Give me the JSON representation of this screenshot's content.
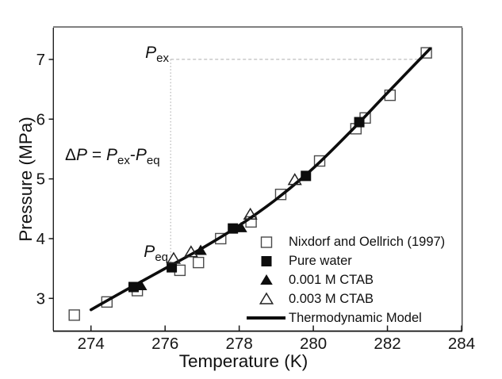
{
  "labels": {
    "x_axis_title": "Temperature (K)",
    "y_axis_title": "Pressure (MPa)",
    "p": "P",
    "sub_ex": "ex",
    "sub_eq": "eq",
    "delta": "Δ",
    "equals": " = ",
    "minus": "-"
  },
  "legend": {
    "position": "lower-right-inside",
    "items": [
      {
        "key": "nixdorf",
        "marker": "open-square",
        "label": "Nixdorf and Oellrich (1997)"
      },
      {
        "key": "pure-water",
        "marker": "filled-square",
        "label": "Pure water"
      },
      {
        "key": "ctab-001",
        "marker": "filled-triangle",
        "label": "0.001 M CTAB"
      },
      {
        "key": "ctab-003",
        "marker": "open-triangle",
        "label": "0.003 M CTAB"
      },
      {
        "key": "model",
        "marker": "line",
        "label": "Thermodynamic Model"
      }
    ]
  },
  "chart_data": {
    "type": "scatter",
    "title": "",
    "xlabel": "Temperature (K)",
    "ylabel": "Pressure (MPa)",
    "xlim": [
      273.0,
      284.0
    ],
    "ylim": [
      2.46,
      7.53
    ],
    "x_ticks": [
      274,
      276,
      278,
      280,
      282,
      284
    ],
    "y_ticks": [
      3,
      4,
      5,
      6,
      7
    ],
    "grid": false,
    "legend_position": "lower right",
    "series": [
      {
        "key": "nixdorf",
        "name": "Nixdorf and Oellrich (1997)",
        "type": "scatter",
        "marker": "open-square",
        "points": [
          [
            273.55,
            2.72
          ],
          [
            274.43,
            2.94
          ],
          [
            275.25,
            3.13
          ],
          [
            276.4,
            3.47
          ],
          [
            276.9,
            3.6
          ],
          [
            277.5,
            4.0
          ],
          [
            278.32,
            4.28
          ],
          [
            279.12,
            4.74
          ],
          [
            280.17,
            5.3
          ],
          [
            281.15,
            5.84
          ],
          [
            281.4,
            6.02
          ],
          [
            282.07,
            6.4
          ],
          [
            283.05,
            7.11
          ]
        ]
      },
      {
        "key": "pure-water",
        "name": "Pure water",
        "type": "scatter",
        "marker": "filled-square",
        "points": [
          [
            275.15,
            3.19
          ],
          [
            276.18,
            3.52
          ],
          [
            277.83,
            4.17
          ],
          [
            279.8,
            5.05
          ],
          [
            281.24,
            5.95
          ]
        ]
      },
      {
        "key": "ctab-001",
        "name": "0.001 M CTAB",
        "type": "scatter",
        "marker": "filled-triangle",
        "points": [
          [
            275.35,
            3.21
          ],
          [
            276.96,
            3.8
          ],
          [
            278.05,
            4.18
          ]
        ]
      },
      {
        "key": "ctab-003",
        "name": "0.003 M CTAB",
        "type": "scatter",
        "marker": "open-triangle",
        "points": [
          [
            276.23,
            3.66
          ],
          [
            276.7,
            3.77
          ],
          [
            278.3,
            4.4
          ],
          [
            279.5,
            4.98
          ]
        ]
      },
      {
        "key": "model",
        "name": "Thermodynamic Model",
        "type": "line",
        "points": [
          [
            274.0,
            2.81
          ],
          [
            275.0,
            3.16
          ],
          [
            276.0,
            3.5
          ],
          [
            277.0,
            3.84
          ],
          [
            278.0,
            4.22
          ],
          [
            279.0,
            4.66
          ],
          [
            280.0,
            5.18
          ],
          [
            281.0,
            5.79
          ],
          [
            282.0,
            6.44
          ],
          [
            283.15,
            7.18
          ]
        ]
      }
    ],
    "annotations": {
      "p_ex_value": 7.0,
      "p_eq_value": 3.52,
      "indicator_x": 276.15,
      "dashed_horizontal_x_end": 282.95
    }
  }
}
